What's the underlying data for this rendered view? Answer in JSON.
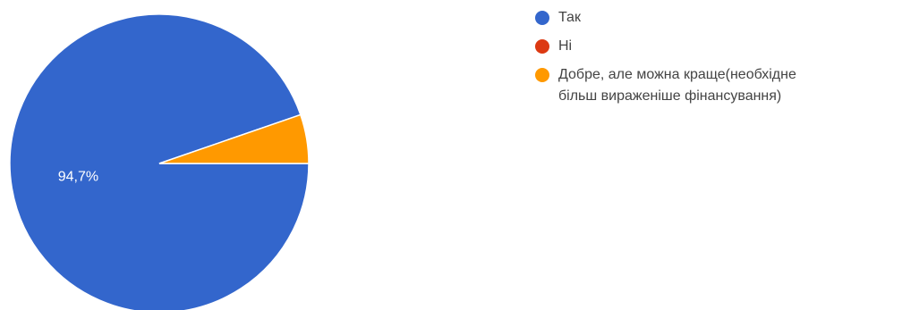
{
  "chart_data": {
    "type": "pie",
    "slices": [
      {
        "label": "Так",
        "value": 94.7,
        "color": "#3366cc"
      },
      {
        "label": "Ні",
        "value": 0,
        "color": "#dc3912"
      },
      {
        "label": "Добре, але можна краще(необхідне\nбільш вираженіше фінансування)",
        "value": 5.3,
        "color": "#ff9900"
      }
    ],
    "data_labels": [
      {
        "slice": 0,
        "text": "94,7%"
      }
    ],
    "legend_position": "right"
  }
}
